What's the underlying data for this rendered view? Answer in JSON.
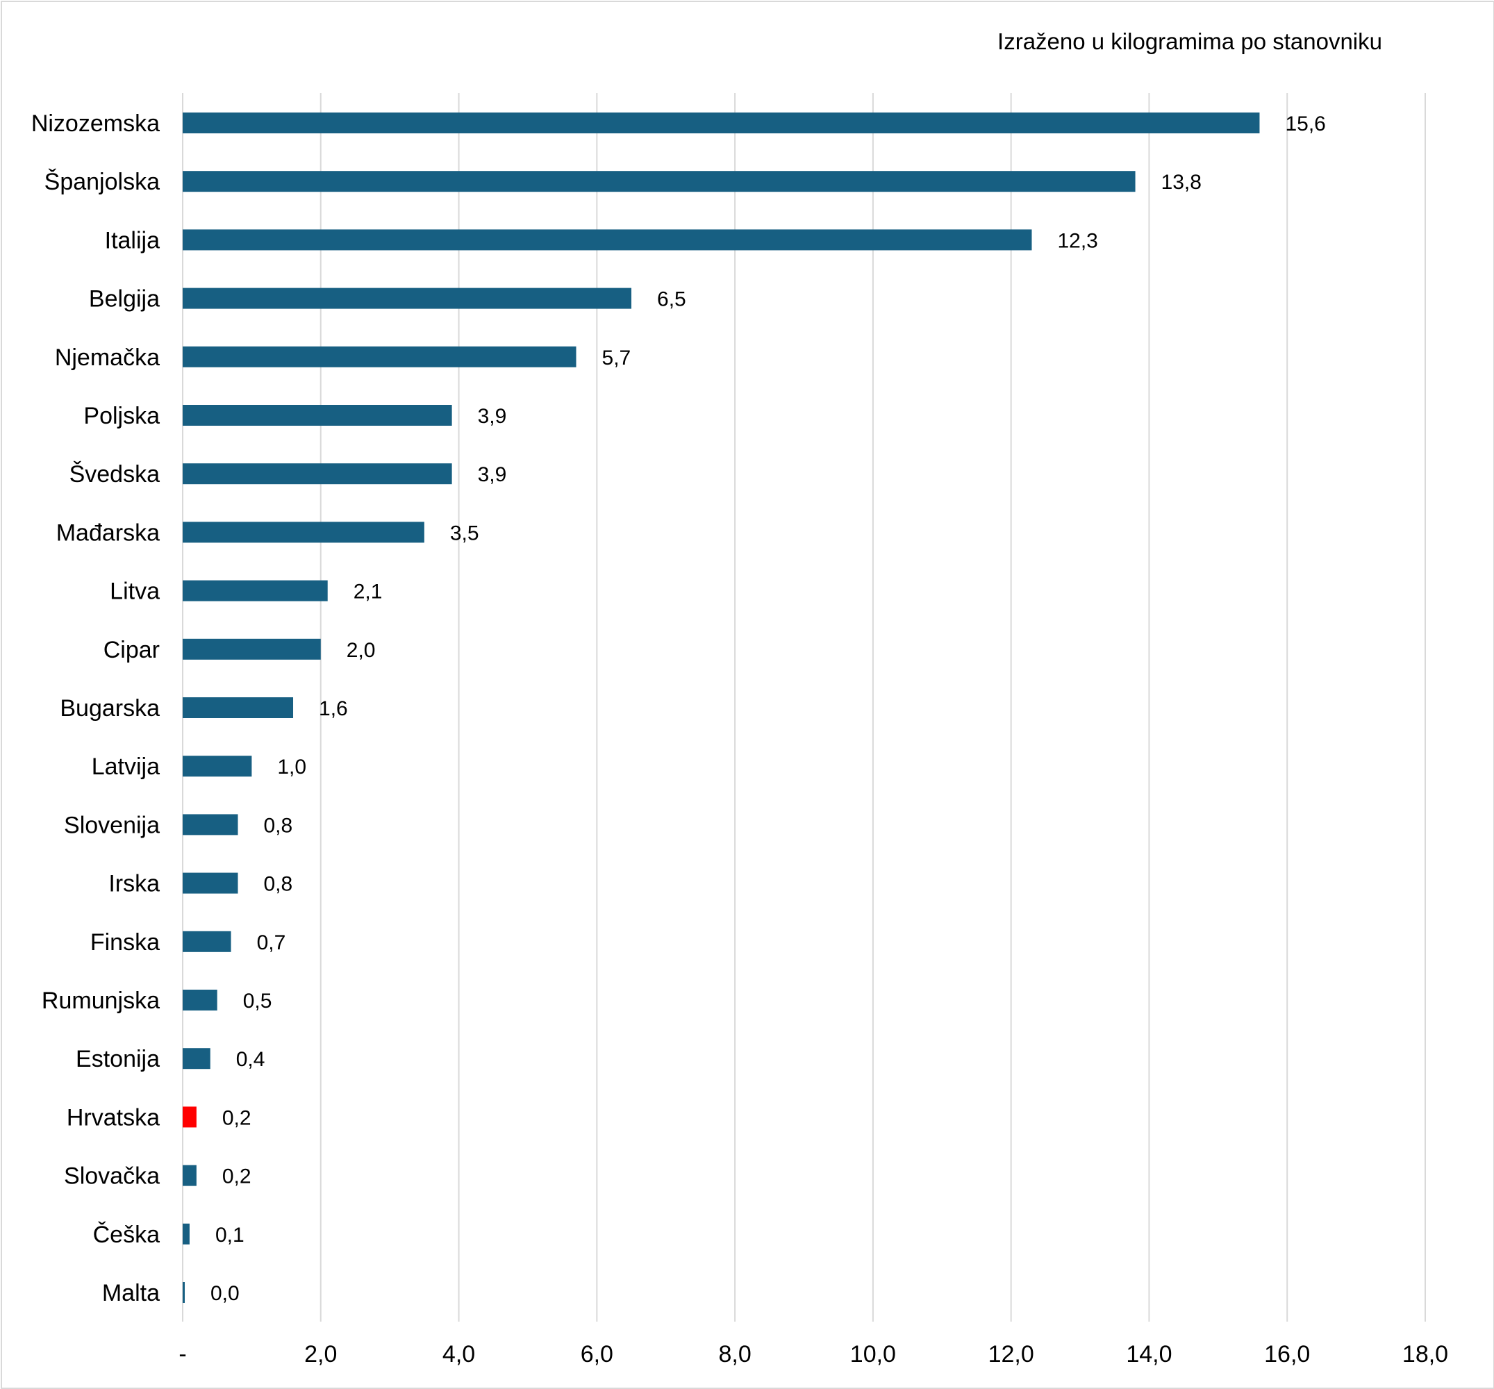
{
  "chart_data": {
    "type": "bar",
    "orientation": "horizontal",
    "unit_note": "Izraženo u kilogramima po stanovniku",
    "categories": [
      "Nizozemska",
      "Španjolska",
      "Italija",
      "Belgija",
      "Njemačka",
      "Poljska",
      "Švedska",
      "Mađarska",
      "Litva",
      "Cipar",
      "Bugarska",
      "Latvija",
      "Slovenija",
      "Irska",
      "Finska",
      "Rumunjska",
      "Estonija",
      "Hrvatska",
      "Slovačka",
      "Češka",
      "Malta"
    ],
    "values": [
      15.6,
      13.8,
      12.3,
      6.5,
      5.7,
      3.9,
      3.9,
      3.5,
      2.1,
      2.0,
      1.6,
      1.0,
      0.8,
      0.8,
      0.7,
      0.5,
      0.4,
      0.2,
      0.2,
      0.1,
      0.0
    ],
    "value_labels": [
      "15,6",
      "13,8",
      "12,3",
      "6,5",
      "5,7",
      "3,9",
      "3,9",
      "3,5",
      "2,1",
      "2,0",
      "1,6",
      "1,0",
      "0,8",
      "0,8",
      "0,7",
      "0,5",
      "0,4",
      "0,2",
      "0,2",
      "0,1",
      "0,0"
    ],
    "xlim": [
      0,
      18
    ],
    "x_ticks": [
      0,
      2,
      4,
      6,
      8,
      10,
      12,
      14,
      16,
      18
    ],
    "x_tick_labels": [
      "-",
      "2,0",
      "4,0",
      "6,0",
      "8,0",
      "10,0",
      "12,0",
      "14,0",
      "16,0",
      "18,0"
    ],
    "grid": "vertical",
    "colors": {
      "bar": "#175f82",
      "highlight": "#ff0000",
      "grid": "#d9d9d9"
    },
    "highlight_category": "Hrvatska"
  }
}
